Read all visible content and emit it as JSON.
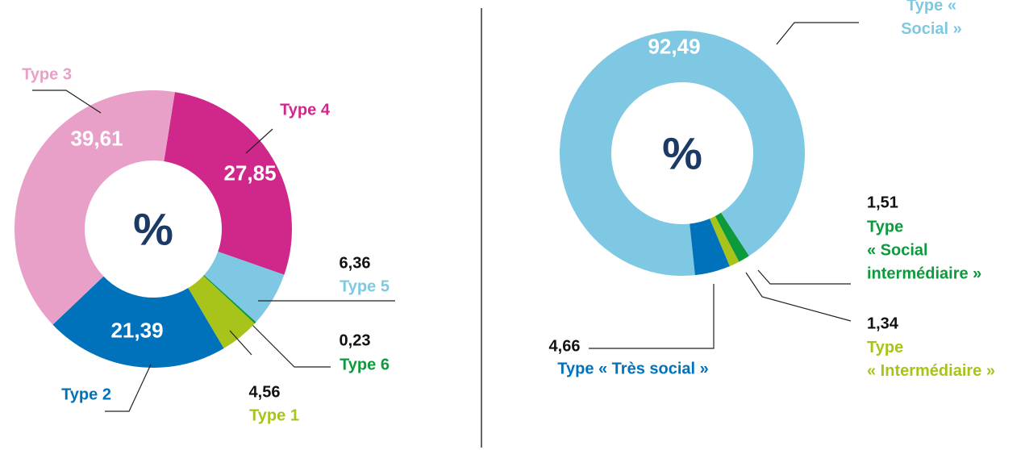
{
  "chart_data": [
    {
      "type": "donut",
      "center_label": "%",
      "series": [
        {
          "name": "Type 4",
          "color": "#d0288a",
          "values": [
            27.85
          ],
          "value_labels": [
            "27,85"
          ]
        },
        {
          "name": "Type 5",
          "color": "#7ec8e3",
          "values": [
            6.36
          ],
          "value_labels": [
            "6,36"
          ]
        },
        {
          "name": "Type 6",
          "color": "#0c9a3c",
          "values": [
            0.23
          ],
          "value_labels": [
            "0,23"
          ]
        },
        {
          "name": "Type 1",
          "color": "#a8c41a",
          "values": [
            4.56
          ],
          "value_labels": [
            "4,56"
          ]
        },
        {
          "name": "Type 2",
          "color": "#0072bb",
          "values": [
            21.39
          ],
          "value_labels": [
            "21,39"
          ]
        },
        {
          "name": "Type 3",
          "color": "#e8a0c8",
          "values": [
            39.61
          ],
          "value_labels": [
            "39,61"
          ]
        }
      ]
    },
    {
      "type": "donut",
      "center_label": "%",
      "series": [
        {
          "name": "Type « Social »",
          "color": "#7ec8e3",
          "values": [
            92.49
          ],
          "value_labels": [
            "92,49"
          ]
        },
        {
          "name": "Type\n« Social\nintermédiaire »",
          "color": "#0c9a3c",
          "values": [
            1.51
          ],
          "value_labels": [
            "1,51"
          ]
        },
        {
          "name": "Type\n« Intermédiaire »",
          "color": "#a8c41a",
          "values": [
            1.34
          ],
          "value_labels": [
            "1,34"
          ]
        },
        {
          "name": "Type « Très social »",
          "color": "#0072bb",
          "values": [
            4.66
          ],
          "value_labels": [
            "4,66"
          ]
        }
      ]
    }
  ]
}
